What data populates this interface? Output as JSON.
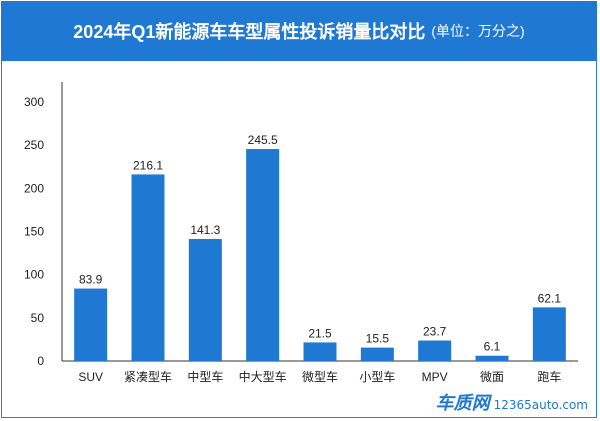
{
  "header": {
    "title": "2024年Q1新能源车车型属性投诉销量比对比",
    "unit": "(单位：万分之)"
  },
  "chart_data": {
    "type": "bar",
    "categories": [
      "SUV",
      "紧凑型车",
      "中型车",
      "中大型车",
      "微型车",
      "小型车",
      "MPV",
      "微面",
      "跑车"
    ],
    "values": [
      83.9,
      216.1,
      141.3,
      245.5,
      21.5,
      15.5,
      23.7,
      6.1,
      62.1
    ],
    "value_labels": [
      "83.9",
      "216.1",
      "141.3",
      "245.5",
      "21.5",
      "15.5",
      "23.7",
      "6.1",
      "62.1"
    ],
    "y_ticks": [
      0,
      50,
      100,
      150,
      200,
      250,
      300
    ],
    "ylim": [
      0,
      300
    ],
    "grid": false,
    "bar_color": "#1f78d1"
  },
  "footer": {
    "logo_text": "车质网",
    "logo_url": "12365auto.com"
  }
}
